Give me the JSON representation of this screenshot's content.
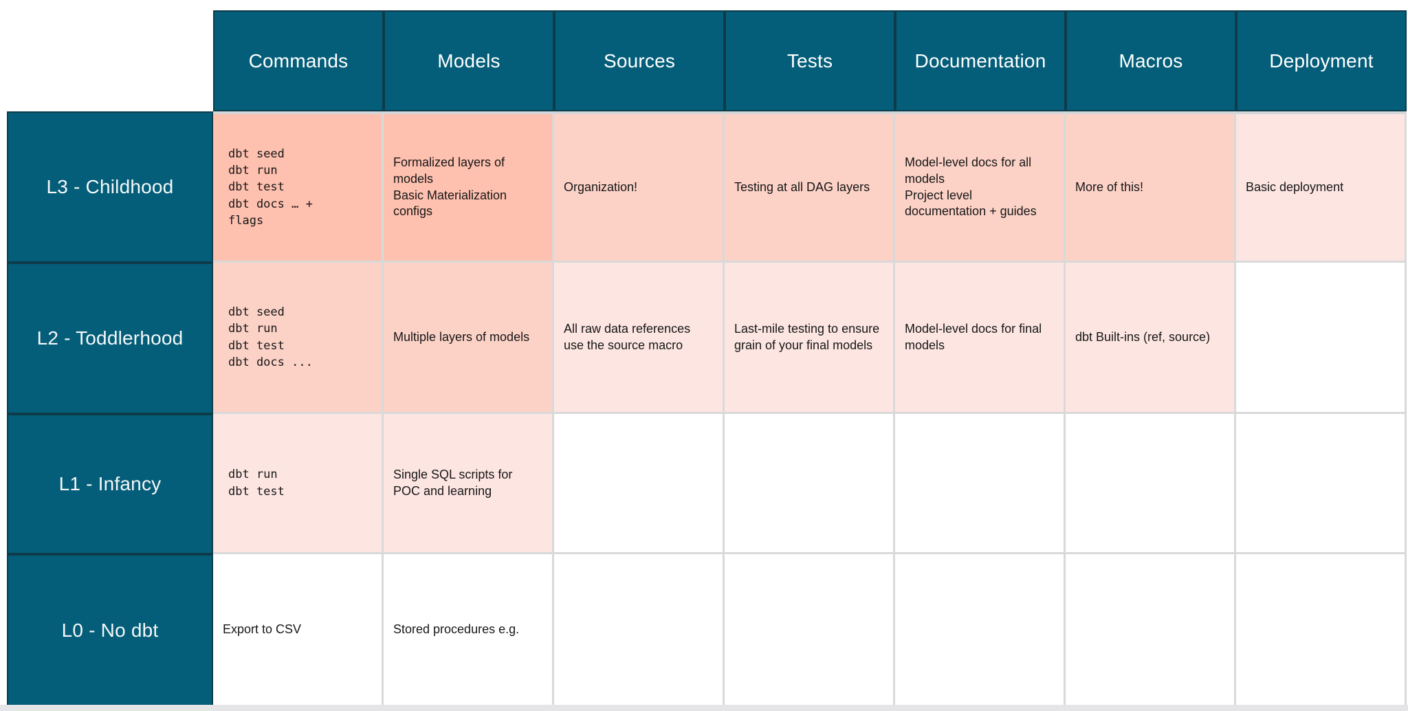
{
  "palette": {
    "teal": "#045e79",
    "teal_border": "#0d3b49",
    "tier3": "#fec0af",
    "tier2": "#fcd2c7",
    "tier1": "#fde6e2",
    "tier0": "#ffffff",
    "grid_line": "#d9d9d9",
    "grid_line_top": "#d3d7da",
    "header_text": "#ffffff",
    "cell_text": "#161616"
  },
  "table": {
    "columns": [
      "Commands",
      "Models",
      "Sources",
      "Tests",
      "Documentation",
      "Macros",
      "Deployment"
    ],
    "rows": [
      {
        "label": "L3 - Childhood",
        "cells": [
          {
            "type": "code",
            "tier": 3,
            "lines": [
              "dbt seed",
              "dbt run",
              "dbt test",
              "dbt docs … +",
              "flags"
            ]
          },
          {
            "type": "text",
            "tier": 3,
            "lines": [
              "Formalized layers of models",
              "Basic Materialization configs"
            ]
          },
          {
            "type": "text",
            "tier": 2,
            "lines": [
              "Organization!"
            ]
          },
          {
            "type": "text",
            "tier": 2,
            "lines": [
              "Testing at all DAG layers"
            ]
          },
          {
            "type": "text",
            "tier": 2,
            "lines": [
              "Model-level docs for all models",
              "Project level documentation + guides"
            ]
          },
          {
            "type": "text",
            "tier": 2,
            "lines": [
              "More of this!"
            ]
          },
          {
            "type": "text",
            "tier": 1,
            "lines": [
              "Basic deployment"
            ]
          }
        ]
      },
      {
        "label": "L2 - Toddlerhood",
        "cells": [
          {
            "type": "code",
            "tier": 2,
            "lines": [
              "dbt seed",
              "dbt run",
              "dbt test",
              "dbt docs ..."
            ]
          },
          {
            "type": "text",
            "tier": 2,
            "lines": [
              "Multiple layers of models"
            ]
          },
          {
            "type": "text",
            "tier": 1,
            "lines": [
              "All raw data references use the source macro"
            ]
          },
          {
            "type": "text",
            "tier": 1,
            "lines": [
              "Last-mile testing to ensure grain of your final models"
            ]
          },
          {
            "type": "text",
            "tier": 1,
            "lines": [
              "Model-level docs for final models"
            ]
          },
          {
            "type": "text",
            "tier": 1,
            "lines": [
              "dbt Built-ins (ref, source)"
            ]
          },
          {
            "type": "text",
            "tier": 0,
            "lines": []
          }
        ]
      },
      {
        "label": "L1 - Infancy",
        "cells": [
          {
            "type": "code",
            "tier": 1,
            "lines": [
              "dbt run",
              "dbt test"
            ]
          },
          {
            "type": "text",
            "tier": 1,
            "lines": [
              "Single SQL scripts for POC and learning"
            ]
          },
          {
            "type": "text",
            "tier": 0,
            "lines": []
          },
          {
            "type": "text",
            "tier": 0,
            "lines": []
          },
          {
            "type": "text",
            "tier": 0,
            "lines": []
          },
          {
            "type": "text",
            "tier": 0,
            "lines": []
          },
          {
            "type": "text",
            "tier": 0,
            "lines": []
          }
        ]
      },
      {
        "label": "L0 - No dbt",
        "cells": [
          {
            "type": "text",
            "tier": 0,
            "lines": [
              "Export to CSV"
            ]
          },
          {
            "type": "text",
            "tier": 0,
            "lines": [
              "Stored procedures e.g."
            ]
          },
          {
            "type": "text",
            "tier": 0,
            "lines": []
          },
          {
            "type": "text",
            "tier": 0,
            "lines": []
          },
          {
            "type": "text",
            "tier": 0,
            "lines": []
          },
          {
            "type": "text",
            "tier": 0,
            "lines": []
          },
          {
            "type": "text",
            "tier": 0,
            "lines": []
          }
        ]
      }
    ]
  }
}
